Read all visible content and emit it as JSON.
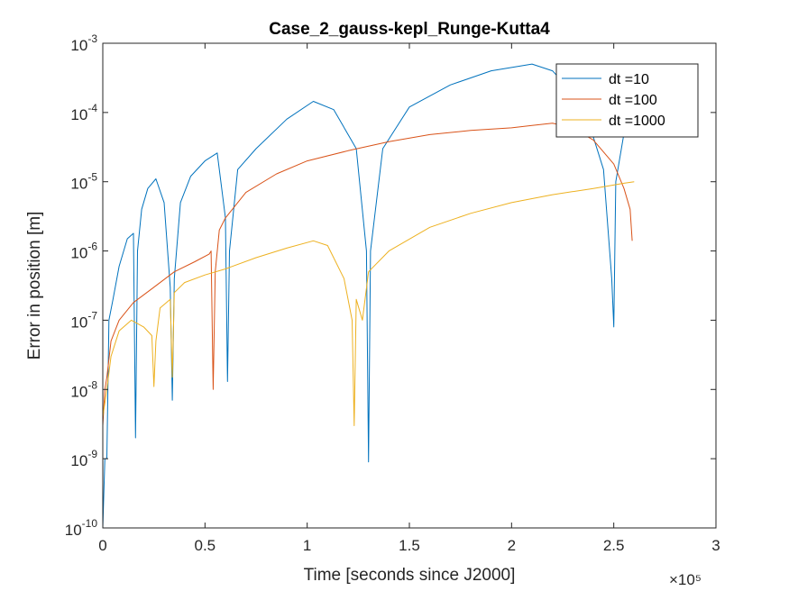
{
  "chart_data": {
    "type": "line",
    "title": "Case_2_gauss-kepl_Runge-Kutta4",
    "xlabel": "Time [seconds since J2000]",
    "ylabel": "Error in position [m]",
    "x_exponent_label": "×10⁵",
    "x_scale_note": "x tick labels are in units of 1e5 seconds",
    "xlim": [
      0,
      300000
    ],
    "ylim": [
      1e-10,
      0.001
    ],
    "yscale": "log",
    "xticks": [
      0,
      50000,
      100000,
      150000,
      200000,
      250000,
      300000
    ],
    "xtick_labels": [
      "0",
      "0.5",
      "1",
      "1.5",
      "2",
      "2.5",
      "3"
    ],
    "yticks": [
      1e-10,
      1e-09,
      1e-08,
      1e-07,
      1e-06,
      1e-05,
      0.0001,
      0.001
    ],
    "ytick_labels": [
      {
        "base": "10",
        "exp": "-10"
      },
      {
        "base": "10",
        "exp": "-9"
      },
      {
        "base": "10",
        "exp": "-8"
      },
      {
        "base": "10",
        "exp": "-7"
      },
      {
        "base": "10",
        "exp": "-6"
      },
      {
        "base": "10",
        "exp": "-5"
      },
      {
        "base": "10",
        "exp": "-4"
      },
      {
        "base": "10",
        "exp": "-3"
      }
    ],
    "grid": false,
    "legend_position": "top-right",
    "series": [
      {
        "name": "dt =10",
        "color": "#0072BD",
        "x": [
          0,
          1000,
          2000,
          3000,
          5000,
          8000,
          12000,
          15000,
          16000,
          17000,
          19000,
          22000,
          26000,
          30000,
          33000,
          34000,
          35000,
          38000,
          43000,
          50000,
          56000,
          60000,
          61000,
          62000,
          66000,
          75000,
          90000,
          103000,
          113000,
          124000,
          129000,
          130000,
          131000,
          137000,
          150000,
          170000,
          190000,
          210000,
          220000,
          235000,
          245000,
          249000,
          250000,
          251000,
          255000,
          260000
        ],
        "y": [
          1e-10,
          1e-09,
          1e-09,
          1e-07,
          2e-07,
          6e-07,
          1.5e-06,
          1.8e-06,
          2e-09,
          1e-06,
          4e-06,
          8e-06,
          1.1e-05,
          5e-06,
          3e-07,
          7e-09,
          4e-07,
          5e-06,
          1.2e-05,
          2e-05,
          2.6e-05,
          3e-06,
          1.3e-08,
          1e-06,
          1.5e-05,
          3e-05,
          8e-05,
          0.000145,
          0.00011,
          3e-05,
          1e-06,
          9e-10,
          1e-06,
          3e-05,
          0.00012,
          0.00025,
          0.0004,
          0.0005,
          0.0004,
          0.00013,
          1.5e-05,
          4e-07,
          8e-08,
          1e-05,
          5e-05,
          0.0001
        ]
      },
      {
        "name": "dt =100",
        "color": "#D95319",
        "x": [
          0,
          1000,
          2000,
          4000,
          8000,
          15000,
          25000,
          35000,
          45000,
          52000,
          53000,
          54000,
          55000,
          57000,
          60000,
          70000,
          85000,
          100000,
          120000,
          140000,
          160000,
          180000,
          200000,
          210000,
          220000,
          230000,
          240000,
          250000,
          255000,
          258000,
          259000
        ],
        "y": [
          3e-09,
          1e-08,
          1.5e-08,
          5e-08,
          1e-07,
          1.8e-07,
          3e-07,
          5e-07,
          7e-07,
          9e-07,
          1e-06,
          1e-08,
          5e-07,
          2e-06,
          3e-06,
          7e-06,
          1.3e-05,
          2e-05,
          2.8e-05,
          3.8e-05,
          4.8e-05,
          5.5e-05,
          6e-05,
          6.5e-05,
          7e-05,
          6e-05,
          4e-05,
          1.8e-05,
          8e-06,
          4e-06,
          1.4e-06
        ]
      },
      {
        "name": "dt =1000",
        "color": "#EDB120",
        "x": [
          0,
          2000,
          4000,
          8000,
          14000,
          20000,
          24000,
          25000,
          26000,
          28000,
          33000,
          34000,
          35000,
          40000,
          50000,
          60000,
          75000,
          90000,
          103000,
          110000,
          118000,
          122000,
          123000,
          124000,
          127000,
          130000,
          140000,
          160000,
          180000,
          200000,
          220000,
          240000,
          255000,
          260000
        ],
        "y": [
          4e-09,
          1e-08,
          3e-08,
          7e-08,
          1e-07,
          8e-08,
          6e-08,
          1.1e-08,
          5e-08,
          1.5e-07,
          2e-07,
          1.5e-08,
          2.5e-07,
          3.5e-07,
          4.5e-07,
          5.5e-07,
          8e-07,
          1.1e-06,
          1.4e-06,
          1.2e-06,
          4e-07,
          1e-07,
          3e-09,
          2e-07,
          1e-07,
          5e-07,
          1e-06,
          2.2e-06,
          3.5e-06,
          5e-06,
          6.5e-06,
          8e-06,
          9.5e-06,
          1e-05
        ]
      }
    ]
  }
}
